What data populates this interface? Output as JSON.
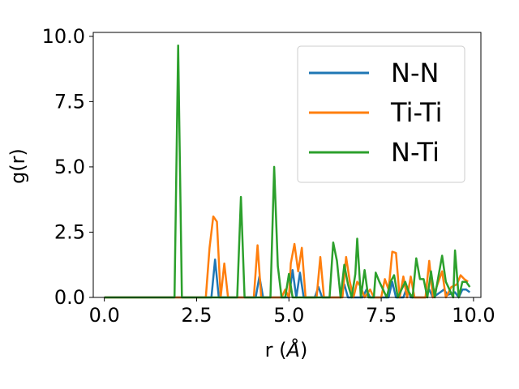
{
  "chart_data": {
    "type": "line",
    "title": "",
    "xlabel_main": "r (",
    "xlabel_unit": "Å",
    "xlabel_close": ")",
    "ylabel": "g(r)",
    "xlim": [
      -0.3,
      10.2
    ],
    "ylim": [
      0,
      10.15
    ],
    "xticks": [
      0.0,
      2.5,
      5.0,
      7.5,
      10.0
    ],
    "xtick_labels": [
      "0.0",
      "2.5",
      "5.0",
      "7.5",
      "10.0"
    ],
    "yticks": [
      0.0,
      2.5,
      5.0,
      7.5,
      10.0
    ],
    "ytick_labels": [
      "0.0",
      "2.5",
      "5.0",
      "7.5",
      "10.0"
    ],
    "grid": false,
    "legend_position": "top-right",
    "series": [
      {
        "name": "N-N",
        "color": "#1f77b4",
        "points": [
          [
            0.0,
            0.0
          ],
          [
            2.9,
            0.0
          ],
          [
            3.0,
            1.45
          ],
          [
            3.1,
            0.0
          ],
          [
            4.1,
            0.0
          ],
          [
            4.2,
            0.8
          ],
          [
            4.3,
            0.0
          ],
          [
            5.0,
            0.0
          ],
          [
            5.1,
            1.05
          ],
          [
            5.2,
            0.0
          ],
          [
            5.3,
            0.95
          ],
          [
            5.4,
            0.0
          ],
          [
            5.7,
            0.0
          ],
          [
            5.8,
            0.4
          ],
          [
            5.9,
            0.0
          ],
          [
            6.4,
            0.0
          ],
          [
            6.5,
            0.5
          ],
          [
            6.6,
            0.0
          ],
          [
            7.0,
            0.0
          ],
          [
            7.1,
            0.3
          ],
          [
            7.2,
            0.0
          ],
          [
            7.7,
            0.0
          ],
          [
            7.8,
            0.6
          ],
          [
            7.9,
            0.0
          ],
          [
            8.1,
            0.0
          ],
          [
            8.2,
            0.4
          ],
          [
            8.3,
            0.0
          ],
          [
            8.7,
            0.0
          ],
          [
            8.8,
            0.3
          ],
          [
            8.9,
            0.0
          ],
          [
            9.1,
            0.2
          ],
          [
            9.2,
            0.3
          ],
          [
            9.3,
            0.1
          ],
          [
            9.5,
            0.2
          ],
          [
            9.6,
            0.0
          ],
          [
            9.7,
            0.3
          ],
          [
            9.8,
            0.3
          ],
          [
            9.9,
            0.2
          ]
        ]
      },
      {
        "name": "Ti-Ti",
        "color": "#ff7f0e",
        "points": [
          [
            0.0,
            0.0
          ],
          [
            2.75,
            0.0
          ],
          [
            2.85,
            1.9
          ],
          [
            2.95,
            3.1
          ],
          [
            3.05,
            2.9
          ],
          [
            3.15,
            0.0
          ],
          [
            3.25,
            1.3
          ],
          [
            3.35,
            0.0
          ],
          [
            4.05,
            0.0
          ],
          [
            4.15,
            2.0
          ],
          [
            4.25,
            0.0
          ],
          [
            4.8,
            0.0
          ],
          [
            4.9,
            0.3
          ],
          [
            5.0,
            0.0
          ],
          [
            5.05,
            1.3
          ],
          [
            5.15,
            2.05
          ],
          [
            5.25,
            1.0
          ],
          [
            5.35,
            1.9
          ],
          [
            5.45,
            0.0
          ],
          [
            5.75,
            0.0
          ],
          [
            5.85,
            1.55
          ],
          [
            5.95,
            0.0
          ],
          [
            6.45,
            0.0
          ],
          [
            6.55,
            1.55
          ],
          [
            6.65,
            0.6
          ],
          [
            6.75,
            0.0
          ],
          [
            6.85,
            0.6
          ],
          [
            6.95,
            0.4
          ],
          [
            7.05,
            0.0
          ],
          [
            7.2,
            0.3
          ],
          [
            7.3,
            0.0
          ],
          [
            7.5,
            0.0
          ],
          [
            7.6,
            0.7
          ],
          [
            7.7,
            0.3
          ],
          [
            7.8,
            1.75
          ],
          [
            7.9,
            1.7
          ],
          [
            8.0,
            0.0
          ],
          [
            8.1,
            0.8
          ],
          [
            8.2,
            0.0
          ],
          [
            8.3,
            0.8
          ],
          [
            8.4,
            0.0
          ],
          [
            8.7,
            0.0
          ],
          [
            8.8,
            1.4
          ],
          [
            8.9,
            0.0
          ],
          [
            9.05,
            0.6
          ],
          [
            9.15,
            1.0
          ],
          [
            9.25,
            0.0
          ],
          [
            9.4,
            0.4
          ],
          [
            9.55,
            0.5
          ],
          [
            9.65,
            0.85
          ],
          [
            9.75,
            0.7
          ],
          [
            9.85,
            0.6
          ]
        ]
      },
      {
        "name": "N-Ti",
        "color": "#2ca02c",
        "points": [
          [
            0.0,
            0.0
          ],
          [
            1.9,
            0.0
          ],
          [
            2.0,
            9.65
          ],
          [
            2.1,
            0.0
          ],
          [
            3.6,
            0.0
          ],
          [
            3.7,
            3.85
          ],
          [
            3.8,
            0.0
          ],
          [
            4.5,
            0.0
          ],
          [
            4.6,
            5.0
          ],
          [
            4.7,
            1.2
          ],
          [
            4.8,
            0.0
          ],
          [
            4.9,
            0.0
          ],
          [
            5.0,
            0.9
          ],
          [
            5.1,
            0.0
          ],
          [
            6.1,
            0.0
          ],
          [
            6.2,
            2.1
          ],
          [
            6.3,
            1.4
          ],
          [
            6.4,
            0.0
          ],
          [
            6.5,
            1.25
          ],
          [
            6.6,
            0.5
          ],
          [
            6.7,
            0.0
          ],
          [
            6.8,
            0.9
          ],
          [
            6.85,
            2.25
          ],
          [
            6.95,
            0.0
          ],
          [
            7.05,
            1.05
          ],
          [
            7.15,
            0.0
          ],
          [
            7.3,
            0.0
          ],
          [
            7.35,
            0.95
          ],
          [
            7.45,
            0.6
          ],
          [
            7.55,
            0.3
          ],
          [
            7.65,
            0.0
          ],
          [
            7.75,
            0.6
          ],
          [
            7.85,
            0.85
          ],
          [
            7.95,
            0.0
          ],
          [
            8.15,
            0.6
          ],
          [
            8.25,
            0.2
          ],
          [
            8.35,
            0.0
          ],
          [
            8.45,
            1.5
          ],
          [
            8.55,
            0.7
          ],
          [
            8.65,
            0.7
          ],
          [
            8.75,
            0.0
          ],
          [
            8.85,
            1.0
          ],
          [
            8.95,
            0.0
          ],
          [
            9.05,
            0.8
          ],
          [
            9.15,
            1.6
          ],
          [
            9.25,
            0.6
          ],
          [
            9.35,
            0.3
          ],
          [
            9.45,
            0.0
          ],
          [
            9.5,
            1.8
          ],
          [
            9.6,
            0.0
          ],
          [
            9.7,
            0.6
          ],
          [
            9.8,
            0.6
          ],
          [
            9.9,
            0.4
          ]
        ]
      }
    ]
  }
}
